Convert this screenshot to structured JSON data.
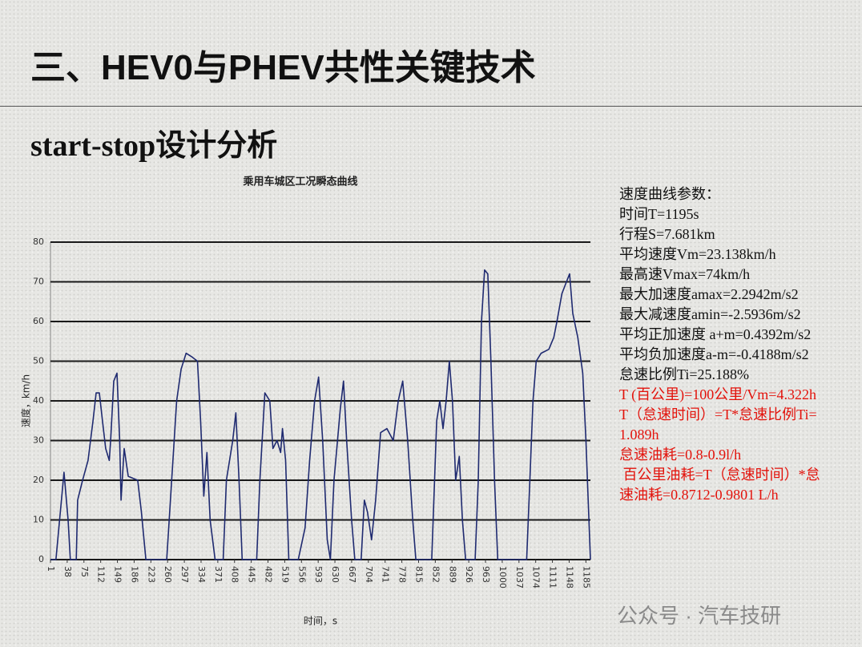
{
  "heading": "三、HEV0与PHEV共性关键技术",
  "subheading": "start-stop设计分析",
  "notes": {
    "color": "#111111",
    "lines": [
      "速度曲线参数：",
      "时间T=1195s",
      "行程S=7.681km",
      "平均速度Vm=23.138km/h",
      "最高速Vmax=74km/h",
      "最大加速度amax=2.2942m/s2",
      "最大减速度amin=-2.5936m/s2",
      "平均正加速度 a+m=0.4392m/s2",
      "平均负加速度a-m=-0.4188m/s2",
      "怠速比例Ti=25.188%"
    ]
  },
  "highlights": {
    "color": "#e3120b",
    "lines": [
      "T (百公里)=100公里/Vm=4.322h",
      "T（怠速时间）=T*怠速比例Ti=",
      "1.089h",
      "怠速油耗=0.8-0.9l/h",
      " 百公里油耗=T（怠速时间）*怠",
      "速油耗=0.8712-0.9801 L/h"
    ]
  },
  "watermark": "公众号 · 汽车技研",
  "chart_data": {
    "type": "line",
    "title": "乘用车城区工况瞬态曲线",
    "x_label": "时间，s",
    "y_label": "速度，km/h",
    "color": "#1f2a70",
    "grid": true,
    "x": [
      1,
      13,
      31,
      40,
      45,
      58,
      61,
      72,
      84,
      95,
      102,
      109,
      116,
      123,
      131,
      134,
      141,
      148,
      154,
      157,
      164,
      173,
      194,
      202,
      212,
      258,
      269,
      280,
      290,
      301,
      315,
      326,
      333,
      340,
      347,
      354,
      365,
      383,
      390,
      404,
      411,
      418,
      425,
      457,
      464,
      475,
      486,
      493,
      502,
      510,
      514,
      521,
      528,
      549,
      564,
      574,
      585,
      594,
      603,
      613,
      620,
      628,
      642,
      649,
      656,
      667,
      674,
      688,
      695,
      702,
      711,
      720,
      731,
      745,
      759,
      770,
      780,
      791,
      802,
      809,
      844,
      855,
      862,
      869,
      876,
      883,
      890,
      897,
      905,
      912,
      919,
      940,
      947,
      954,
      961,
      968,
      975,
      983,
      990,
      1054,
      1061,
      1068,
      1075,
      1086,
      1103,
      1114,
      1121,
      1132,
      1142,
      1149,
      1156,
      1167,
      1178,
      1185,
      1195
    ],
    "values": [
      0,
      0,
      22,
      10,
      0,
      0,
      15,
      20,
      25,
      35,
      42,
      42,
      35,
      28,
      25,
      30,
      45,
      47,
      30,
      15,
      28,
      21,
      20,
      12,
      0,
      0,
      20,
      40,
      48,
      52,
      51,
      50,
      35,
      16,
      27,
      10,
      0,
      0,
      20,
      30,
      37,
      20,
      0,
      0,
      20,
      42,
      40,
      28,
      30,
      27,
      33,
      25,
      0,
      0,
      8,
      25,
      40,
      46,
      30,
      5,
      0,
      20,
      38,
      45,
      30,
      10,
      0,
      0,
      15,
      12,
      5,
      15,
      32,
      33,
      30,
      40,
      45,
      30,
      10,
      0,
      0,
      35,
      40,
      33,
      40,
      50,
      40,
      20,
      26,
      10,
      0,
      0,
      20,
      60,
      73,
      72,
      50,
      20,
      0,
      0,
      20,
      40,
      50,
      52,
      53,
      56,
      60,
      67,
      70,
      72,
      62,
      56,
      47,
      30,
      0
    ],
    "xlim": [
      1,
      1195
    ],
    "xticks": [
      1,
      38,
      75,
      112,
      149,
      186,
      223,
      260,
      297,
      334,
      371,
      408,
      445,
      482,
      519,
      556,
      593,
      630,
      667,
      704,
      741,
      778,
      815,
      852,
      889,
      926,
      963,
      1000,
      1037,
      1074,
      1111,
      1148,
      1185
    ],
    "ylim": [
      0,
      80
    ],
    "yticks": [
      0,
      10,
      20,
      30,
      40,
      50,
      60,
      70,
      80
    ]
  }
}
